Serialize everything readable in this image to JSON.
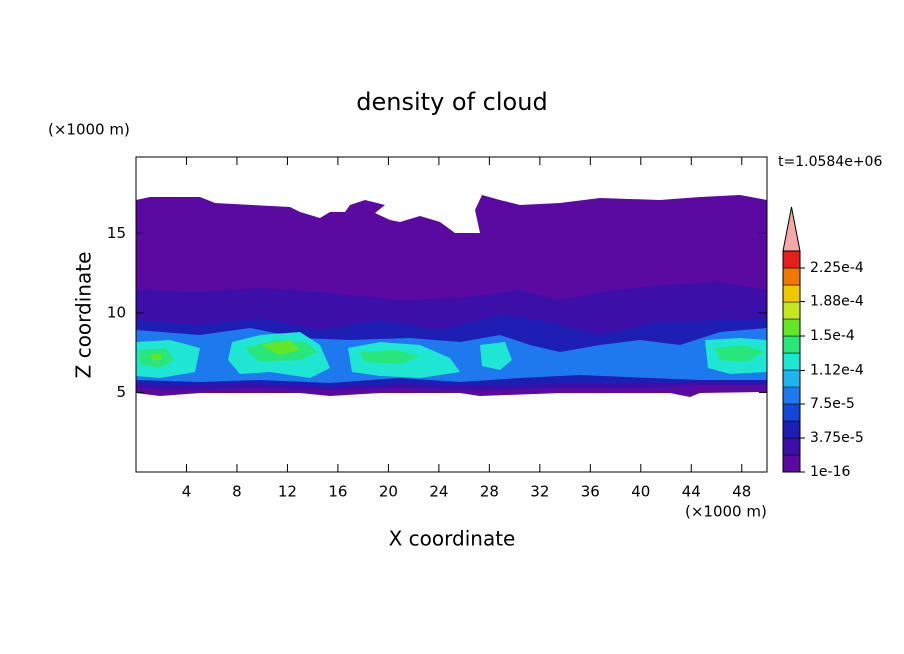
{
  "chart_data": {
    "type": "contour",
    "title": "density of cloud",
    "x_label": "X coordinate",
    "y_label": "Z coordinate",
    "x_unit": "(×1000 m)",
    "y_unit": "(×1000 m)",
    "time_label": "t=1.0584e+06",
    "xlim": [
      0,
      50
    ],
    "ylim": [
      0,
      19.8
    ],
    "xticks": [
      4,
      8,
      12,
      16,
      20,
      24,
      28,
      32,
      36,
      40,
      44,
      48
    ],
    "yticks": [
      5,
      10,
      15
    ],
    "colorbar": {
      "levels": [
        1e-16,
        1.875e-05,
        3.75e-05,
        5.625e-05,
        7.5e-05,
        9.375e-05,
        0.0001125,
        0.00013125,
        0.00015,
        0.00016875,
        0.0001875,
        0.00020625,
        0.000225,
        0.00024375
      ],
      "colors": [
        "#5a0aa0",
        "#3c10a8",
        "#1e1eb4",
        "#1446dc",
        "#1e78ee",
        "#1eb4f0",
        "#1ee6d2",
        "#28e67a",
        "#64e628",
        "#c8e61e",
        "#f0c800",
        "#f07800",
        "#e61e1e"
      ],
      "extend_color": "#f4a8a8",
      "ticks": [
        {
          "value": 1e-16,
          "label": "1e-16"
        },
        {
          "value": 3.75e-05,
          "label": "3.75e-5"
        },
        {
          "value": 7.5e-05,
          "label": "7.5e-5"
        },
        {
          "value": 0.000112,
          "label": "1.12e-4"
        },
        {
          "value": 0.00015,
          "label": "1.5e-4"
        },
        {
          "value": 0.000188,
          "label": "1.88e-4"
        },
        {
          "value": 0.000225,
          "label": "2.25e-4"
        }
      ]
    }
  }
}
